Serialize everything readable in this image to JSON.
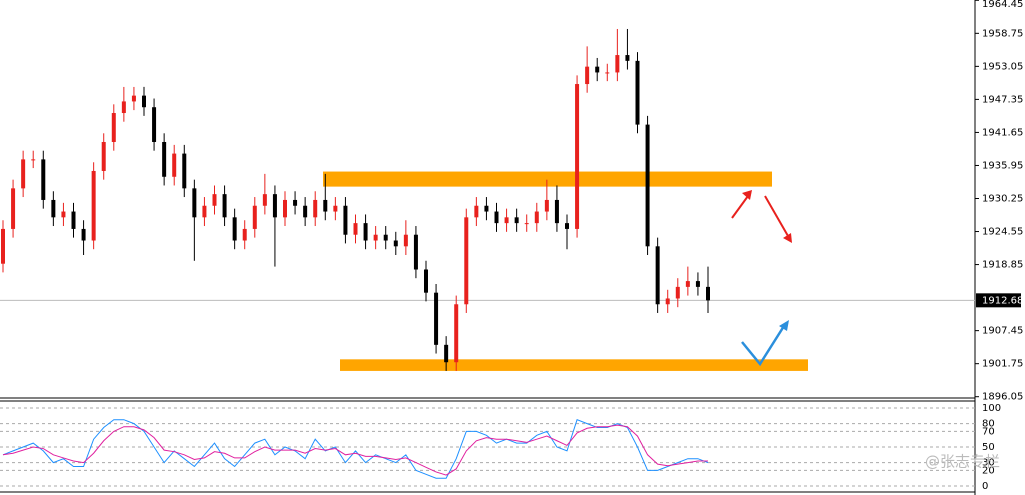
{
  "chart_data": [
    {
      "type": "candlestick",
      "ylim": [
        1896.0,
        1964.5
      ],
      "yticks": [
        1896.05,
        1901.75,
        1907.45,
        1918.85,
        1924.55,
        1930.25,
        1935.95,
        1941.65,
        1947.35,
        1953.05,
        1958.75,
        1964.45
      ],
      "last_price": 1912.68,
      "up_color": "#e8211d",
      "down_color": "#000000",
      "zone_color": "#ffa500",
      "zones": [
        {
          "low": 1932.3,
          "high": 1934.9
        },
        {
          "low": 1900.5,
          "high": 1902.5
        }
      ],
      "series": [
        {
          "open": [
            1919,
            1925,
            1932,
            1937,
            1937,
            1930,
            1927,
            1928,
            1925,
            1923,
            1935,
            1940,
            1945,
            1947,
            1948,
            1946,
            1940,
            1934,
            1938,
            1932,
            1927,
            1929,
            1931,
            1927,
            1923,
            1925,
            1929,
            1931,
            1927,
            1930,
            1929,
            1927,
            1930,
            1928,
            1929,
            1924,
            1926,
            1923,
            1924,
            1923,
            1922,
            1924,
            1918,
            1914,
            1905,
            1902,
            1912,
            1927,
            1929,
            1928,
            1926,
            1927,
            1926,
            1926,
            1928,
            1930,
            1926,
            1925,
            1950,
            1953,
            1952,
            1952,
            1955,
            1954,
            1943,
            1922,
            1912,
            1913,
            1915,
            1916,
            1915
          ],
          "high": [
            1926.5,
            1933.5,
            1938.5,
            1938.5,
            1938.5,
            1931.5,
            1929.5,
            1929.5,
            1926.5,
            1936.5,
            1941.5,
            1946.5,
            1949.5,
            1949.5,
            1949.5,
            1947.5,
            1941.5,
            1939.5,
            1939.5,
            1933.5,
            1930.5,
            1932.5,
            1932.5,
            1928.5,
            1926.5,
            1930.5,
            1934.5,
            1932.5,
            1931.5,
            1931.5,
            1930.5,
            1931.5,
            1934.5,
            1930.5,
            1930.5,
            1927.5,
            1927.5,
            1925.5,
            1925.5,
            1924.5,
            1926.5,
            1925.5,
            1919.5,
            1915.5,
            1906.5,
            1913.5,
            1928.5,
            1930.5,
            1930.5,
            1929.5,
            1928.5,
            1928.5,
            1927.5,
            1929.5,
            1933.5,
            1932.5,
            1927.5,
            1951.5,
            1956.5,
            1954.5,
            1953.5,
            1959.5,
            1959.5,
            1955.5,
            1944.5,
            1923.5,
            1914.5,
            1916.5,
            1918.5,
            1917.5,
            1918.5
          ],
          "low": [
            1917.5,
            1923.5,
            1930.5,
            1935.5,
            1928.5,
            1925.5,
            1925.5,
            1923.5,
            1920.5,
            1921.5,
            1933.5,
            1938.5,
            1943.5,
            1945.5,
            1944.5,
            1938.5,
            1932.5,
            1932.5,
            1930.5,
            1919.5,
            1925.5,
            1927.5,
            1925.5,
            1921.5,
            1921.5,
            1923.5,
            1927.5,
            1918.5,
            1925.5,
            1927.5,
            1925.5,
            1925.5,
            1926.5,
            1926.5,
            1922.5,
            1922.5,
            1921.5,
            1921.5,
            1921.5,
            1920.5,
            1920.5,
            1916.5,
            1912.5,
            1903.5,
            1900.5,
            1900.5,
            1910.5,
            1925.5,
            1926.5,
            1924.5,
            1924.5,
            1924.5,
            1924.5,
            1924.5,
            1926.5,
            1924.5,
            1921.5,
            1923.5,
            1948.5,
            1950.5,
            1950.5,
            1950.5,
            1952.5,
            1941.5,
            1920.5,
            1910.5,
            1910.5,
            1911.5,
            1913.5,
            1913.5,
            1910.5
          ],
          "close": [
            1925,
            1932,
            1937,
            1937,
            1930,
            1927,
            1928,
            1925,
            1923,
            1935,
            1940,
            1945,
            1947,
            1948,
            1946,
            1940,
            1934,
            1938,
            1932,
            1927,
            1929,
            1931,
            1927,
            1923,
            1925,
            1929,
            1931,
            1927,
            1930,
            1929,
            1927,
            1930,
            1928,
            1929,
            1924,
            1926,
            1923,
            1924,
            1923,
            1922,
            1924,
            1918,
            1914,
            1905,
            1902,
            1912,
            1927,
            1929,
            1928,
            1926,
            1927,
            1926,
            1926,
            1928,
            1930,
            1926,
            1925,
            1950,
            1953,
            1952,
            1952,
            1955,
            1954,
            1943,
            1922,
            1912,
            1913,
            1915,
            1916,
            1915,
            1912.68
          ]
        }
      ]
    },
    {
      "type": "line",
      "ylim": [
        0,
        100
      ],
      "yticks": [
        0,
        20,
        30,
        50,
        70,
        80,
        100
      ],
      "series": [
        {
          "color": "#1e90ff",
          "values": [
            40,
            45,
            50,
            55,
            45,
            30,
            35,
            25,
            25,
            60,
            75,
            85,
            85,
            80,
            70,
            50,
            30,
            45,
            35,
            25,
            40,
            55,
            35,
            25,
            40,
            55,
            60,
            40,
            50,
            45,
            35,
            60,
            45,
            50,
            30,
            45,
            30,
            40,
            35,
            30,
            40,
            20,
            15,
            10,
            10,
            35,
            70,
            70,
            65,
            55,
            60,
            55,
            55,
            65,
            70,
            50,
            45,
            85,
            80,
            75,
            75,
            80,
            75,
            50,
            20,
            20,
            25,
            30,
            35,
            35,
            30
          ]
        },
        {
          "color": "#e0219f",
          "values": [
            40,
            42,
            46,
            50,
            48,
            40,
            36,
            32,
            30,
            42,
            58,
            70,
            76,
            76,
            72,
            62,
            46,
            44,
            40,
            34,
            36,
            44,
            42,
            36,
            36,
            44,
            50,
            46,
            46,
            46,
            42,
            48,
            46,
            48,
            40,
            42,
            38,
            38,
            36,
            34,
            36,
            30,
            24,
            18,
            14,
            22,
            45,
            58,
            62,
            60,
            60,
            58,
            56,
            60,
            64,
            58,
            52,
            68,
            74,
            76,
            76,
            78,
            76,
            64,
            40,
            28,
            26,
            28,
            30,
            32,
            32
          ]
        }
      ]
    }
  ],
  "watermark": "@张志专栏"
}
